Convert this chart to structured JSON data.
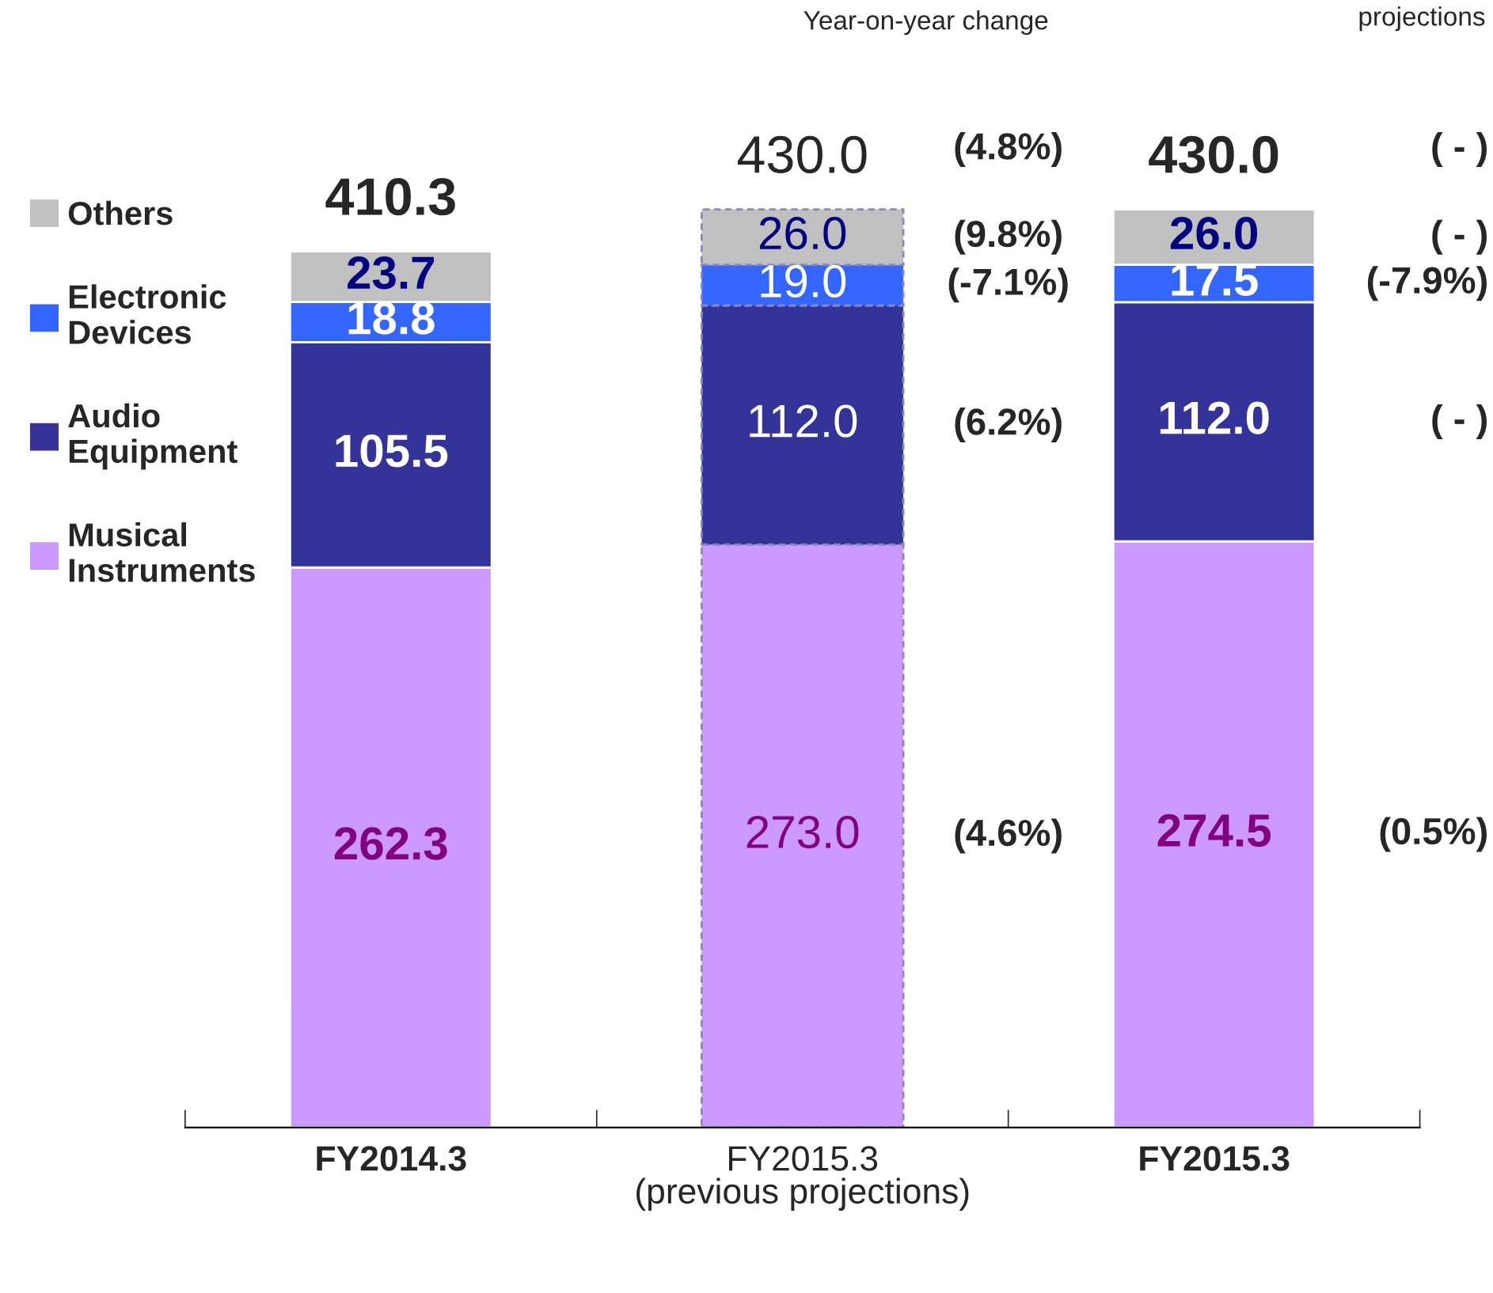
{
  "chart_data": {
    "type": "bar",
    "stacked": true,
    "categories": [
      "FY2014.3",
      "FY2015.3\n(previous projections)",
      "FY2015.3"
    ],
    "series": [
      {
        "name": "Musical Instruments",
        "color": "#cc99ff",
        "values": [
          262.3,
          273.0,
          274.5
        ],
        "value_labels": [
          "262.3",
          "273.0",
          "274.5"
        ]
      },
      {
        "name": "Audio Equipment",
        "color": "#333399",
        "values": [
          105.5,
          112.0,
          112.0
        ],
        "value_labels": [
          "105.5",
          "112.0",
          "112.0"
        ]
      },
      {
        "name": "Electronic Devices",
        "color": "#3366ff",
        "values": [
          18.8,
          19.0,
          17.5
        ],
        "value_labels": [
          "18.8",
          "19.0",
          "17.5"
        ]
      },
      {
        "name": "Others",
        "color": "#c0c0c0",
        "values": [
          23.7,
          26.0,
          26.0
        ],
        "value_labels": [
          "23.7",
          "26.0",
          "26.0"
        ]
      }
    ],
    "totals": [
      "410.3",
      "430.0",
      "430.0"
    ],
    "legend": "left",
    "annotations": [
      "Year-on-year change",
      "projections",
      "(4.8%)",
      "(9.8%)",
      "(-7.1%)",
      "(6.2%)",
      "(4.6%)",
      "( - )",
      "( - )",
      "(-7.9%)",
      "( - )",
      "(0.5%)"
    ]
  }
}
